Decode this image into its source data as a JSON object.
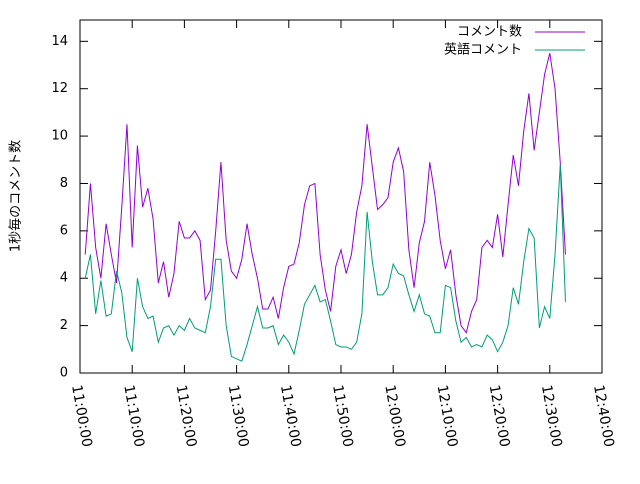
{
  "chart_data": {
    "type": "line",
    "y_label": "1秒毎のコメント数",
    "x": [
      "11:01:00",
      "11:02:00",
      "11:03:00",
      "11:04:00",
      "11:05:00",
      "11:06:00",
      "11:07:00",
      "11:08:00",
      "11:09:00",
      "11:10:00",
      "11:11:00",
      "11:12:00",
      "11:13:00",
      "11:14:00",
      "11:15:00",
      "11:16:00",
      "11:17:00",
      "11:18:00",
      "11:19:00",
      "11:20:00",
      "11:21:00",
      "11:22:00",
      "11:23:00",
      "11:24:00",
      "11:25:00",
      "11:26:00",
      "11:27:00",
      "11:28:00",
      "11:29:00",
      "11:30:00",
      "11:31:00",
      "11:32:00",
      "11:33:00",
      "11:34:00",
      "11:35:00",
      "11:36:00",
      "11:37:00",
      "11:38:00",
      "11:39:00",
      "11:40:00",
      "11:41:00",
      "11:42:00",
      "11:43:00",
      "11:44:00",
      "11:45:00",
      "11:46:00",
      "11:47:00",
      "11:48:00",
      "11:49:00",
      "11:50:00",
      "11:51:00",
      "11:52:00",
      "11:53:00",
      "11:54:00",
      "11:55:00",
      "11:56:00",
      "11:57:00",
      "11:58:00",
      "11:59:00",
      "12:00:00",
      "12:01:00",
      "12:02:00",
      "12:03:00",
      "12:04:00",
      "12:05:00",
      "12:06:00",
      "12:07:00",
      "12:08:00",
      "12:09:00",
      "12:10:00",
      "12:11:00",
      "12:12:00",
      "12:13:00",
      "12:14:00",
      "12:15:00",
      "12:16:00",
      "12:17:00",
      "12:18:00",
      "12:19:00",
      "12:20:00",
      "12:21:00",
      "12:22:00",
      "12:23:00",
      "12:24:00",
      "12:25:00",
      "12:26:00",
      "12:27:00",
      "12:28:00",
      "12:29:00",
      "12:30:00",
      "12:31:00",
      "12:32:00",
      "12:33:00"
    ],
    "series": [
      {
        "name": "コメント数",
        "color": "#9400d3",
        "values": [
          5.0,
          8.0,
          5.3,
          4.0,
          6.3,
          5.0,
          3.8,
          7.0,
          10.5,
          5.3,
          9.6,
          7.0,
          7.8,
          6.5,
          3.8,
          4.7,
          3.2,
          4.2,
          6.4,
          5.7,
          5.7,
          6.0,
          5.6,
          3.1,
          3.5,
          6.0,
          8.9,
          5.6,
          4.3,
          4.0,
          4.8,
          6.3,
          5.0,
          4.0,
          2.7,
          2.7,
          3.2,
          2.3,
          3.6,
          4.5,
          4.6,
          5.5,
          7.1,
          7.9,
          8.0,
          5.0,
          3.5,
          2.6,
          4.5,
          5.2,
          4.2,
          5.0,
          6.8,
          7.9,
          10.5,
          8.7,
          6.9,
          7.1,
          7.4,
          8.9,
          9.5,
          8.5,
          5.2,
          3.6,
          5.5,
          6.4,
          8.9,
          7.5,
          5.6,
          4.4,
          5.2,
          3.3,
          2.0,
          1.7,
          2.6,
          3.1,
          5.3,
          5.6,
          5.3,
          6.7,
          4.9,
          7.1,
          9.2,
          7.9,
          10.2,
          11.8,
          9.4,
          11.0,
          12.6,
          13.5,
          12.0,
          8.9,
          5.0
        ]
      },
      {
        "name": "英語コメント",
        "color": "#009e73",
        "values": [
          4.0,
          5.0,
          2.5,
          3.9,
          2.4,
          2.5,
          4.3,
          3.4,
          1.5,
          0.9,
          4.0,
          2.8,
          2.3,
          2.4,
          1.3,
          1.9,
          2.0,
          1.6,
          2.0,
          1.8,
          2.3,
          1.9,
          1.8,
          1.7,
          2.8,
          4.8,
          4.8,
          2.0,
          0.7,
          0.6,
          0.5,
          1.2,
          2.0,
          2.8,
          1.9,
          1.9,
          2.0,
          1.2,
          1.6,
          1.3,
          0.8,
          1.8,
          2.9,
          3.3,
          3.7,
          3.0,
          3.1,
          2.2,
          1.2,
          1.1,
          1.1,
          1.0,
          1.3,
          2.5,
          6.8,
          4.7,
          3.3,
          3.3,
          3.6,
          4.6,
          4.2,
          4.1,
          3.3,
          2.6,
          3.3,
          2.5,
          2.4,
          1.7,
          1.7,
          3.7,
          3.6,
          2.2,
          1.3,
          1.5,
          1.1,
          1.2,
          1.1,
          1.6,
          1.4,
          0.9,
          1.3,
          2.0,
          3.6,
          2.9,
          4.7,
          6.1,
          5.7,
          1.9,
          2.8,
          2.3,
          5.0,
          8.8,
          3.0
        ]
      }
    ],
    "xlim": [
      "11:00:00",
      "12:40:00"
    ],
    "xticks": [
      "11:00:00",
      "11:10:00",
      "11:20:00",
      "11:30:00",
      "11:40:00",
      "11:50:00",
      "12:00:00",
      "12:10:00",
      "12:20:00",
      "12:30:00",
      "12:40:00"
    ],
    "ylim": [
      0,
      14.9
    ],
    "yticks": [
      0,
      2,
      4,
      6,
      8,
      10,
      12,
      14
    ],
    "legend": "top-right"
  }
}
